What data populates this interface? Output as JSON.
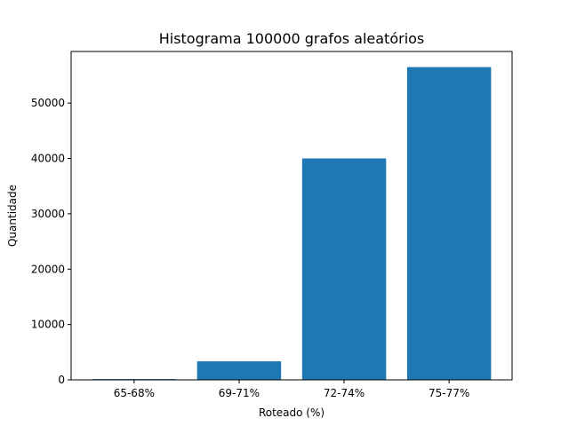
{
  "chart_data": {
    "type": "bar",
    "title": "Histograma 100000 grafos aleatórios",
    "xlabel": "Roteado (%)",
    "ylabel": "Quantidade",
    "categories": [
      "65-68%",
      "69-71%",
      "72-74%",
      "75-77%"
    ],
    "values": [
      150,
      3350,
      40000,
      56500
    ],
    "ylim": [
      0,
      59325
    ],
    "yticks": [
      0,
      10000,
      20000,
      30000,
      40000,
      50000
    ],
    "grid": false,
    "bar_color": "#1f77b4"
  }
}
